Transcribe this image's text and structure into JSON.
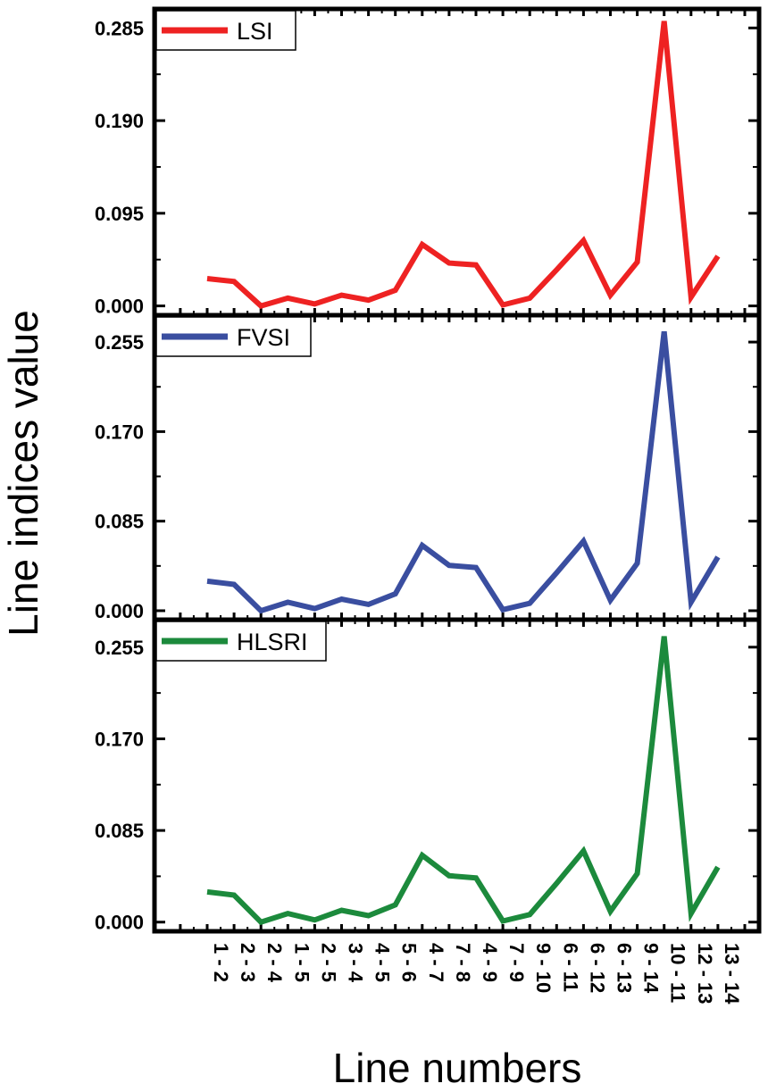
{
  "chart_data": {
    "type": "line",
    "ylabel": "Line indices value",
    "xlabel": "Line numbers",
    "categories": [
      [
        "1",
        "2"
      ],
      [
        "2",
        "3"
      ],
      [
        "2",
        "4"
      ],
      [
        "1",
        "5"
      ],
      [
        "2",
        "5"
      ],
      [
        "3",
        "4"
      ],
      [
        "4",
        "5"
      ],
      [
        "5",
        "6"
      ],
      [
        "4",
        "7"
      ],
      [
        "7",
        "8"
      ],
      [
        "4",
        "9"
      ],
      [
        "7",
        "9"
      ],
      [
        "9",
        "10"
      ],
      [
        "6",
        "11"
      ],
      [
        "6",
        "12"
      ],
      [
        "6",
        "13"
      ],
      [
        "9",
        "14"
      ],
      [
        "10",
        "11"
      ],
      [
        "12",
        "13"
      ],
      [
        "13",
        "14"
      ]
    ],
    "panels": [
      {
        "name": "LSI",
        "color": "#ee2222",
        "yticks": [
          "0.000",
          "0.095",
          "0.190",
          "0.285"
        ],
        "ylim": [
          -0.0095,
          0.3045
        ],
        "values": [
          0.028,
          0.025,
          0.0,
          0.008,
          0.002,
          0.011,
          0.006,
          0.016,
          0.063,
          0.044,
          0.042,
          0.001,
          0.008,
          0.037,
          0.067,
          0.011,
          0.045,
          0.292,
          0.009,
          0.051
        ]
      },
      {
        "name": "FVSI",
        "color": "#3a4ea0",
        "yticks": [
          "0.000",
          "0.085",
          "0.170",
          "0.255"
        ],
        "ylim": [
          -0.0085,
          0.2805
        ],
        "values": [
          0.028,
          0.025,
          0.0,
          0.008,
          0.002,
          0.011,
          0.006,
          0.016,
          0.062,
          0.043,
          0.041,
          0.001,
          0.007,
          0.036,
          0.066,
          0.01,
          0.045,
          0.265,
          0.008,
          0.051
        ]
      },
      {
        "name": "HLSRI",
        "color": "#1c8a3c",
        "yticks": [
          "0.000",
          "0.085",
          "0.170",
          "0.255"
        ],
        "ylim": [
          -0.0085,
          0.2805
        ],
        "values": [
          0.028,
          0.025,
          0.0,
          0.008,
          0.002,
          0.011,
          0.006,
          0.016,
          0.062,
          0.043,
          0.041,
          0.001,
          0.007,
          0.036,
          0.066,
          0.01,
          0.045,
          0.265,
          0.008,
          0.051
        ]
      }
    ]
  }
}
